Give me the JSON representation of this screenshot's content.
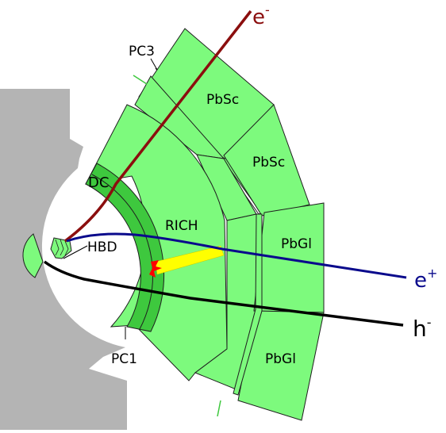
{
  "detector": {
    "labels": {
      "pc3": "PC3",
      "pbsc_1": "PbSc",
      "pbsc_2": "PbSc",
      "dc": "DC",
      "rich": "RICH",
      "hbd": "HBD",
      "pbgl_1": "PbGl",
      "pbgl_2": "PbGl",
      "pc1": "PC1"
    },
    "particles": {
      "electron": {
        "base": "e",
        "sup": "-",
        "color": "#8b0e0e"
      },
      "positron": {
        "base": "e",
        "sup": "+",
        "color": "#0a0a8c"
      },
      "hadron": {
        "base": "h",
        "sup": "-",
        "color": "#000000"
      }
    },
    "colors": {
      "module_fill": "#7dfa7d",
      "inner_green": "#3ec83e",
      "magnet_gray": "#b4b4b4",
      "cherenkov_ring": "#ffff00",
      "hit_marker": "#ff0000"
    }
  }
}
